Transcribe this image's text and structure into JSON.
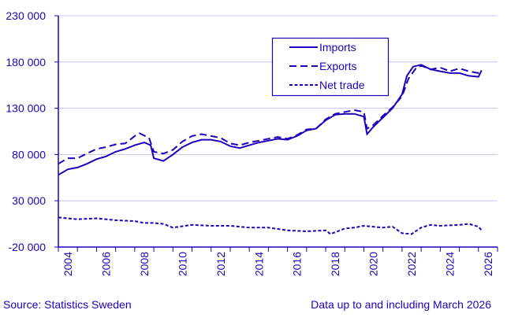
{
  "chart_data": {
    "type": "line",
    "title": "",
    "xlabel": "",
    "ylabel": "",
    "ylim": [
      -20000,
      230000
    ],
    "yticks": [
      -20000,
      30000,
      80000,
      130000,
      180000,
      230000
    ],
    "ytick_labels": [
      "-20 000",
      "30 000",
      "80 000",
      "130 000",
      "180 000",
      "230 000"
    ],
    "xlim": [
      "2004-01",
      "2026-12"
    ],
    "xtick_labels": [
      "2004",
      "2006",
      "2008",
      "2010",
      "2012",
      "2014",
      "2016",
      "2018",
      "2020",
      "2022",
      "2024",
      "2026"
    ],
    "grid": "horizontal",
    "legend_placement": "top-center",
    "color": "#2200bb",
    "series": [
      {
        "name": "Imports",
        "style": "solid",
        "points": [
          [
            "2004-01",
            58000
          ],
          [
            "2004-07",
            64000
          ],
          [
            "2005-01",
            66000
          ],
          [
            "2005-07",
            70000
          ],
          [
            "2006-01",
            75000
          ],
          [
            "2006-07",
            78000
          ],
          [
            "2007-01",
            83000
          ],
          [
            "2007-07",
            86000
          ],
          [
            "2008-01",
            90000
          ],
          [
            "2008-07",
            93000
          ],
          [
            "2008-11",
            90000
          ],
          [
            "2009-01",
            76000
          ],
          [
            "2009-07",
            73000
          ],
          [
            "2010-01",
            80000
          ],
          [
            "2010-07",
            88000
          ],
          [
            "2011-01",
            93000
          ],
          [
            "2011-07",
            96000
          ],
          [
            "2012-01",
            96000
          ],
          [
            "2012-07",
            94000
          ],
          [
            "2013-01",
            89000
          ],
          [
            "2013-07",
            87000
          ],
          [
            "2014-01",
            90000
          ],
          [
            "2014-07",
            93000
          ],
          [
            "2015-01",
            95000
          ],
          [
            "2015-07",
            97000
          ],
          [
            "2016-01",
            96000
          ],
          [
            "2016-07",
            100000
          ],
          [
            "2017-01",
            106000
          ],
          [
            "2017-07",
            108000
          ],
          [
            "2018-01",
            117000
          ],
          [
            "2018-07",
            123000
          ],
          [
            "2019-01",
            124000
          ],
          [
            "2019-07",
            124000
          ],
          [
            "2020-01",
            121000
          ],
          [
            "2020-03",
            102000
          ],
          [
            "2020-07",
            110000
          ],
          [
            "2021-01",
            120000
          ],
          [
            "2021-07",
            130000
          ],
          [
            "2022-01",
            145000
          ],
          [
            "2022-04",
            165000
          ],
          [
            "2022-08",
            175000
          ],
          [
            "2023-01",
            177000
          ],
          [
            "2023-07",
            172000
          ],
          [
            "2024-01",
            170000
          ],
          [
            "2024-07",
            168000
          ],
          [
            "2025-01",
            168000
          ],
          [
            "2025-07",
            165000
          ],
          [
            "2026-01",
            164000
          ],
          [
            "2026-03",
            171000
          ]
        ]
      },
      {
        "name": "Exports",
        "style": "dashed",
        "points": [
          [
            "2004-01",
            70000
          ],
          [
            "2004-07",
            76000
          ],
          [
            "2005-01",
            76000
          ],
          [
            "2005-07",
            81000
          ],
          [
            "2006-01",
            86000
          ],
          [
            "2006-07",
            88000
          ],
          [
            "2007-01",
            91000
          ],
          [
            "2007-07",
            92000
          ],
          [
            "2008-01",
            100000
          ],
          [
            "2008-04",
            103000
          ],
          [
            "2008-10",
            98000
          ],
          [
            "2009-01",
            83000
          ],
          [
            "2009-07",
            81000
          ],
          [
            "2010-01",
            85000
          ],
          [
            "2010-07",
            94000
          ],
          [
            "2011-01",
            100000
          ],
          [
            "2011-07",
            102000
          ],
          [
            "2012-01",
            100000
          ],
          [
            "2012-07",
            98000
          ],
          [
            "2013-01",
            92000
          ],
          [
            "2013-07",
            90000
          ],
          [
            "2014-01",
            93000
          ],
          [
            "2014-07",
            95000
          ],
          [
            "2015-01",
            97000
          ],
          [
            "2015-07",
            99000
          ],
          [
            "2016-01",
            97000
          ],
          [
            "2016-07",
            101000
          ],
          [
            "2017-01",
            107000
          ],
          [
            "2017-07",
            108000
          ],
          [
            "2018-01",
            118000
          ],
          [
            "2018-07",
            124000
          ],
          [
            "2019-01",
            126000
          ],
          [
            "2019-07",
            128000
          ],
          [
            "2020-01",
            126000
          ],
          [
            "2020-03",
            108000
          ],
          [
            "2020-07",
            112000
          ],
          [
            "2021-01",
            122000
          ],
          [
            "2021-07",
            131000
          ],
          [
            "2022-01",
            143000
          ],
          [
            "2022-05",
            162000
          ],
          [
            "2022-10",
            174000
          ],
          [
            "2023-01",
            176000
          ],
          [
            "2023-07",
            172000
          ],
          [
            "2024-01",
            174000
          ],
          [
            "2024-07",
            170000
          ],
          [
            "2025-01",
            173000
          ],
          [
            "2025-07",
            170000
          ],
          [
            "2026-01",
            168000
          ],
          [
            "2026-03",
            168000
          ]
        ]
      },
      {
        "name": "Net trade",
        "style": "short-dashed",
        "points": [
          [
            "2004-01",
            12000
          ],
          [
            "2005-01",
            10000
          ],
          [
            "2006-01",
            11000
          ],
          [
            "2007-01",
            9000
          ],
          [
            "2008-01",
            8000
          ],
          [
            "2008-07",
            6000
          ],
          [
            "2009-01",
            6000
          ],
          [
            "2009-07",
            5000
          ],
          [
            "2010-01",
            1000
          ],
          [
            "2011-01",
            4000
          ],
          [
            "2012-01",
            3000
          ],
          [
            "2013-01",
            3000
          ],
          [
            "2014-01",
            1000
          ],
          [
            "2015-01",
            1000
          ],
          [
            "2016-01",
            -2000
          ],
          [
            "2017-01",
            -3000
          ],
          [
            "2018-01",
            -2000
          ],
          [
            "2018-04",
            -6000
          ],
          [
            "2019-01",
            0
          ],
          [
            "2019-07",
            1000
          ],
          [
            "2020-01",
            3000
          ],
          [
            "2021-01",
            1000
          ],
          [
            "2021-07",
            2000
          ],
          [
            "2022-01",
            -5000
          ],
          [
            "2022-07",
            -6000
          ],
          [
            "2023-01",
            1000
          ],
          [
            "2023-07",
            4000
          ],
          [
            "2024-01",
            3000
          ],
          [
            "2025-01",
            4000
          ],
          [
            "2025-07",
            5000
          ],
          [
            "2026-01",
            2000
          ],
          [
            "2026-03",
            -2000
          ]
        ]
      }
    ]
  },
  "footer": {
    "source": "Source: Statistics Sweden",
    "note": "Data up to and including March 2026"
  }
}
